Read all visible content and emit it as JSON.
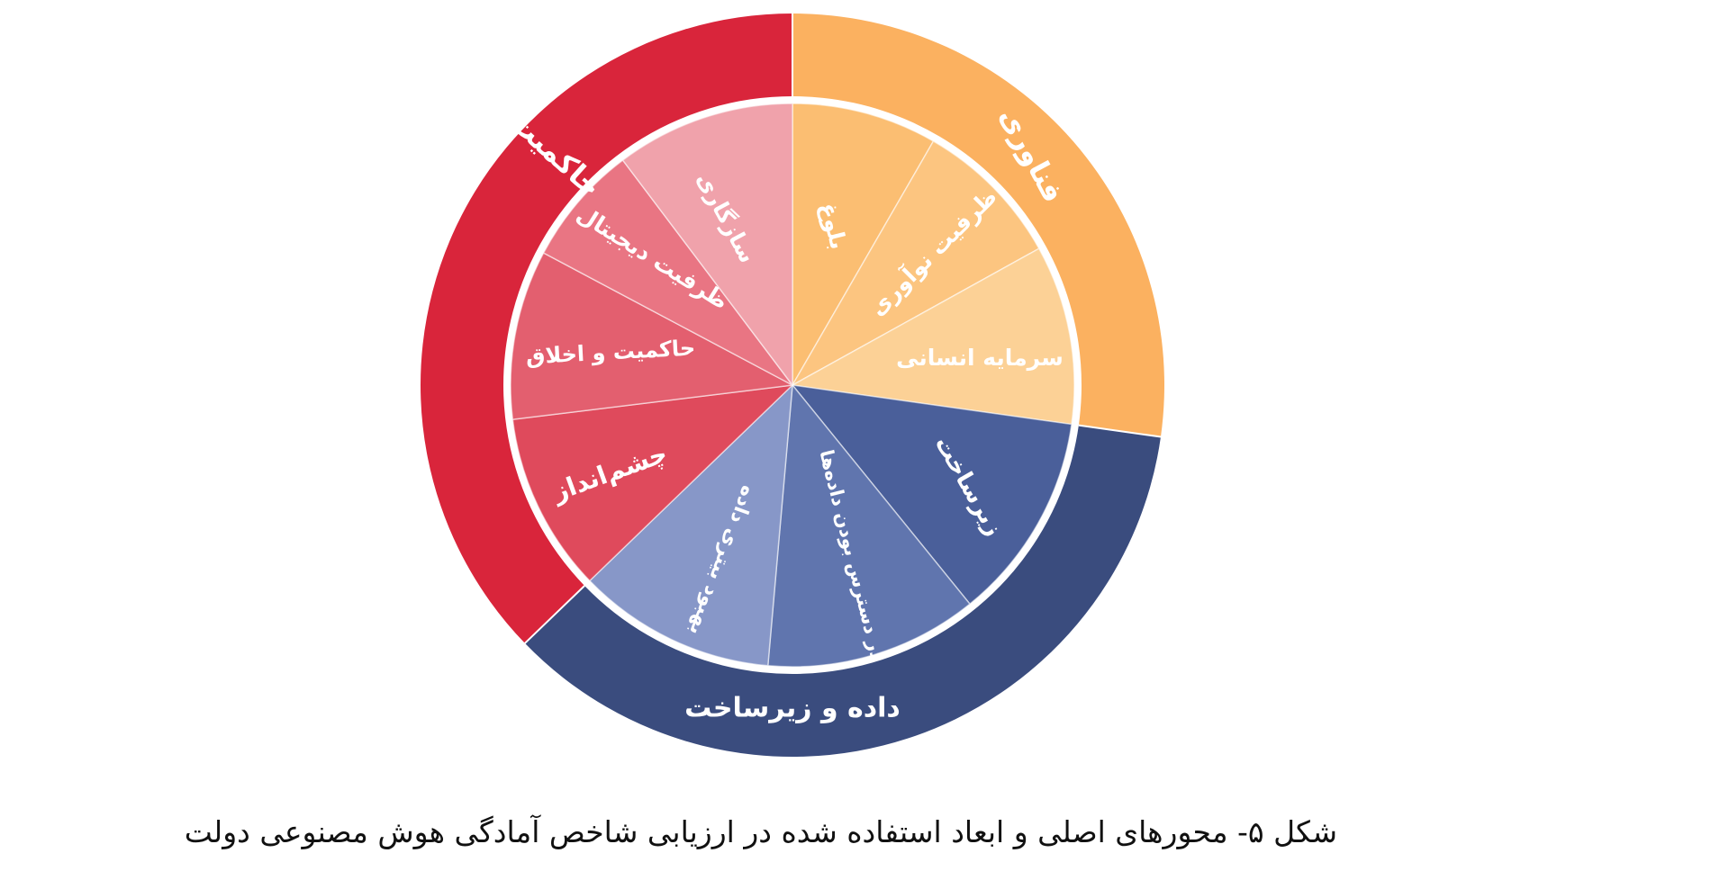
{
  "diagram": {
    "axes": [
      {
        "label": "فناوری",
        "color": "#fbb160",
        "dimensions": [
          {
            "label": "بلوغ",
            "color": "#fbbe72"
          },
          {
            "label": "ظرفیت نوآوری",
            "color": "#fcc580"
          },
          {
            "label": "سرمایه انسانی",
            "color": "#fcd196"
          }
        ]
      },
      {
        "label": "داده و زیرساخت",
        "color": "#3a4c7e",
        "dimensions": [
          {
            "label": "زیرساخت",
            "color": "#4a5f9a"
          },
          {
            "label": "در دسترس بودن داده‌ها",
            "color": "#6075ae"
          },
          {
            "label": "بهبود بیتری داده",
            "color": "#8797c8"
          }
        ]
      },
      {
        "label": "حاکمیت",
        "color": "#d9253b",
        "dimensions": [
          {
            "label": "چشم‌انداز",
            "color": "#df4a5c"
          },
          {
            "label": "حاکمیت و اخلاق",
            "color": "#e35f6f"
          },
          {
            "label": "ظرفیت دیجیتال",
            "color": "#e97583"
          },
          {
            "label": "سازگاری",
            "color": "#f0a2ab"
          }
        ]
      }
    ]
  },
  "caption": "شکل ۵- محورهای اصلی و ابعاد استفاده شده در ارزیابی شاخص آمادگی هوش مصنوعی دولت"
}
